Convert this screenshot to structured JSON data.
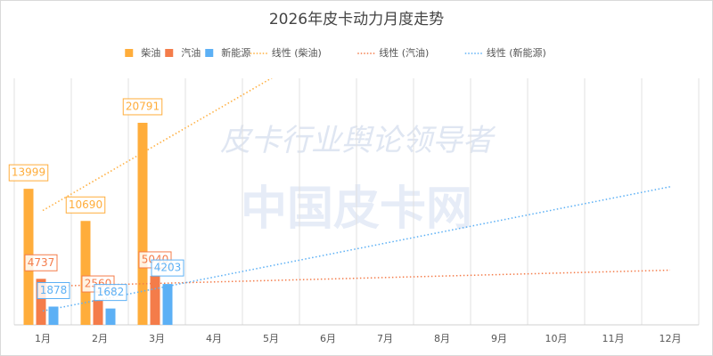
{
  "chart_data": {
    "type": "bar",
    "title": "2026年皮卡动力月度走势",
    "watermark": [
      "皮卡行业舆论领导者",
      "中国皮卡网"
    ],
    "categories": [
      "1月",
      "2月",
      "3月",
      "4月",
      "5月",
      "6月",
      "7月",
      "8月",
      "9月",
      "10月",
      "11月",
      "12月"
    ],
    "series": [
      {
        "name": "柴油",
        "color": "#ffad3b",
        "values": [
          13999,
          10690,
          20791,
          null,
          null,
          null,
          null,
          null,
          null,
          null,
          null,
          null
        ]
      },
      {
        "name": "汽油",
        "color": "#f47c4a",
        "values": [
          4737,
          2560,
          5040,
          null,
          null,
          null,
          null,
          null,
          null,
          null,
          null,
          null
        ]
      },
      {
        "name": "新能源",
        "color": "#5cb0f5",
        "values": [
          1878,
          1682,
          4203,
          null,
          null,
          null,
          null,
          null,
          null,
          null,
          null,
          null
        ]
      }
    ],
    "trendlines": [
      {
        "name": "线性 (柴油)",
        "type": "linear",
        "series": 0,
        "color": "#ffad3b"
      },
      {
        "name": "线性 (汽油)",
        "type": "linear",
        "series": 1,
        "color": "#f47c4a"
      },
      {
        "name": "线性 (新能源)",
        "type": "linear",
        "series": 2,
        "color": "#5cb0f5"
      }
    ],
    "ylim": [
      0,
      25000
    ],
    "vertical_grid": true,
    "legend": "top"
  }
}
